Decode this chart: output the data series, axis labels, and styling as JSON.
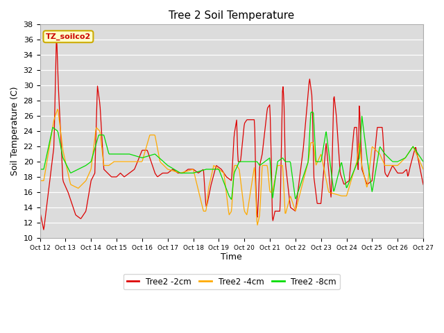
{
  "title": "Tree 2 Soil Temperature",
  "xlabel": "Time",
  "ylabel": "Soil Temperature (C)",
  "ylim": [
    10,
    38
  ],
  "yticks": [
    10,
    12,
    14,
    16,
    18,
    20,
    22,
    24,
    26,
    28,
    30,
    32,
    34,
    36,
    38
  ],
  "xtick_labels": [
    "Oct 12",
    "Oct 13",
    "Oct 14",
    "Oct 15",
    "Oct 16",
    "Oct 17",
    "Oct 18",
    "Oct 19",
    "Oct 20",
    "Oct 21",
    "Oct 22",
    "Oct 23",
    "Oct 24",
    "Oct 25",
    "Oct 26",
    "Oct 27"
  ],
  "series_colors": [
    "#dd0000",
    "#ffaa00",
    "#00dd00"
  ],
  "series_labels": [
    "Tree2 -2cm",
    "Tree2 -4cm",
    "Tree2 -8cm"
  ],
  "plot_bg": "#dcdcdc",
  "fig_bg": "#ffffff",
  "annotation_text": "TZ_soilco2",
  "annotation_bg": "#ffffcc",
  "annotation_border": "#ccaa00",
  "red_x": [
    0,
    0.15,
    0.55,
    0.65,
    0.72,
    0.9,
    1.1,
    1.4,
    1.6,
    1.8,
    2.0,
    2.15,
    2.25,
    2.35,
    2.5,
    2.65,
    2.8,
    3.0,
    3.15,
    3.3,
    3.5,
    3.7,
    4.0,
    4.2,
    4.3,
    4.4,
    4.5,
    4.6,
    4.8,
    5.0,
    5.2,
    5.4,
    5.6,
    5.8,
    6.0,
    6.2,
    6.4,
    6.5,
    6.55,
    6.7,
    6.9,
    7.1,
    7.3,
    7.5,
    7.6,
    7.7,
    7.75,
    7.85,
    8.0,
    8.1,
    8.4,
    8.45,
    8.5,
    8.55,
    8.6,
    8.7,
    8.9,
    9.0,
    9.05,
    9.1,
    9.2,
    9.4,
    9.5,
    9.55,
    9.6,
    9.8,
    10.0,
    10.3,
    10.55,
    10.65,
    10.72,
    10.85,
    11.0,
    11.2,
    11.4,
    11.5,
    11.6,
    11.75,
    11.9,
    12.1,
    12.3,
    12.4,
    12.45,
    12.5,
    12.6,
    12.8,
    13.0,
    13.2,
    13.4,
    13.45,
    13.5,
    13.6,
    13.8,
    14.0,
    14.2,
    14.35,
    14.4,
    14.5,
    14.7,
    15.0
  ],
  "red_y": [
    13.5,
    11.0,
    22.0,
    37.0,
    30.0,
    17.5,
    16.0,
    13.0,
    12.5,
    13.5,
    17.5,
    18.5,
    30.0,
    27.5,
    19.0,
    18.5,
    18.0,
    18.0,
    18.5,
    18.0,
    18.5,
    19.0,
    21.5,
    21.5,
    20.5,
    19.5,
    18.5,
    18.0,
    18.5,
    18.5,
    19.0,
    18.5,
    18.5,
    19.0,
    19.0,
    18.5,
    19.0,
    14.0,
    14.5,
    17.0,
    19.5,
    19.0,
    18.0,
    17.5,
    23.5,
    25.5,
    20.0,
    20.0,
    25.0,
    25.5,
    25.5,
    17.0,
    12.0,
    15.0,
    19.5,
    21.0,
    27.0,
    27.5,
    21.0,
    12.0,
    13.5,
    13.5,
    30.5,
    28.0,
    20.0,
    14.0,
    13.5,
    21.5,
    31.0,
    28.5,
    18.0,
    14.5,
    14.5,
    22.5,
    15.0,
    29.0,
    26.0,
    18.5,
    17.0,
    17.5,
    24.5,
    24.5,
    18.0,
    28.0,
    19.0,
    17.0,
    17.5,
    24.5,
    24.5,
    22.0,
    18.5,
    18.0,
    19.5,
    18.5,
    18.5,
    19.0,
    18.0,
    19.5,
    22.0,
    17.0
  ],
  "orange_x": [
    0,
    0.15,
    0.55,
    0.7,
    0.9,
    1.2,
    1.5,
    1.8,
    2.0,
    2.2,
    2.35,
    2.5,
    2.7,
    2.9,
    3.1,
    3.5,
    4.0,
    4.3,
    4.5,
    4.7,
    5.0,
    5.5,
    6.0,
    6.4,
    6.5,
    6.6,
    6.8,
    7.0,
    7.2,
    7.4,
    7.5,
    7.6,
    7.7,
    7.8,
    8.0,
    8.1,
    8.4,
    8.5,
    8.6,
    8.7,
    8.9,
    9.0,
    9.1,
    9.3,
    9.5,
    9.6,
    9.8,
    10.0,
    10.5,
    10.6,
    10.7,
    10.8,
    11.0,
    11.3,
    11.8,
    12.0,
    12.4,
    12.5,
    12.6,
    12.8,
    13.0,
    13.3,
    13.5,
    13.7,
    14.0,
    14.3,
    14.6,
    15.0
  ],
  "orange_y": [
    17.5,
    17.5,
    25.5,
    27.0,
    21.5,
    17.0,
    16.5,
    17.5,
    19.0,
    24.5,
    24.0,
    19.5,
    19.5,
    20.0,
    20.0,
    20.0,
    20.0,
    23.5,
    23.5,
    20.0,
    19.0,
    18.5,
    19.0,
    13.5,
    13.5,
    16.5,
    19.5,
    19.0,
    18.5,
    13.0,
    13.5,
    19.5,
    19.5,
    19.0,
    13.5,
    13.0,
    19.5,
    11.5,
    13.0,
    19.5,
    19.5,
    16.0,
    16.0,
    19.5,
    19.5,
    13.0,
    15.5,
    13.5,
    20.0,
    22.5,
    22.5,
    19.5,
    21.0,
    16.0,
    15.5,
    15.5,
    20.0,
    22.5,
    19.5,
    16.5,
    22.0,
    21.0,
    19.5,
    19.5,
    19.5,
    20.5,
    22.0,
    19.0
  ],
  "green_x": [
    0,
    0.15,
    0.5,
    0.7,
    0.9,
    1.2,
    1.5,
    1.8,
    2.0,
    2.3,
    2.5,
    2.7,
    2.9,
    3.1,
    3.5,
    4.0,
    4.5,
    5.0,
    5.5,
    6.0,
    6.5,
    7.0,
    7.4,
    7.5,
    7.6,
    7.8,
    8.0,
    8.5,
    8.6,
    8.8,
    9.0,
    9.1,
    9.3,
    9.5,
    9.6,
    9.8,
    10.0,
    10.5,
    10.6,
    10.7,
    10.8,
    11.0,
    11.2,
    11.5,
    11.8,
    12.0,
    12.5,
    12.6,
    12.8,
    13.0,
    13.3,
    13.5,
    13.8,
    14.0,
    14.3,
    14.6,
    15.0
  ],
  "green_y": [
    19.0,
    19.0,
    24.5,
    24.0,
    20.5,
    18.5,
    19.0,
    19.5,
    20.0,
    23.5,
    23.5,
    21.0,
    21.0,
    21.0,
    21.0,
    20.5,
    21.0,
    19.5,
    18.5,
    18.5,
    19.0,
    19.0,
    15.5,
    15.0,
    18.5,
    20.0,
    20.0,
    20.0,
    19.5,
    20.0,
    20.5,
    15.0,
    20.0,
    20.5,
    20.0,
    20.0,
    15.0,
    20.0,
    26.5,
    26.5,
    20.0,
    20.0,
    24.0,
    16.0,
    20.0,
    16.5,
    20.5,
    26.0,
    20.5,
    16.0,
    22.0,
    21.0,
    20.0,
    20.0,
    20.5,
    22.0,
    20.0
  ]
}
